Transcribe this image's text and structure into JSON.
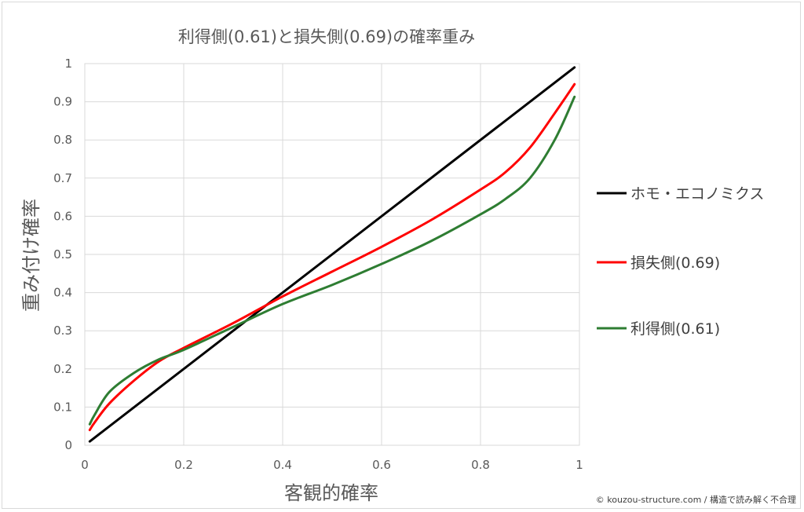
{
  "chart_data": {
    "type": "line",
    "title": "利得側(0.61)と損失側(0.69)の確率重み",
    "xlabel": "客観的確率",
    "ylabel": "重み付け確率",
    "xlim": [
      0,
      1
    ],
    "ylim": [
      0,
      1
    ],
    "xticks": [
      "0",
      "0.2",
      "0.4",
      "0.6",
      "0.8",
      "1"
    ],
    "yticks": [
      "0",
      "0.1",
      "0.2",
      "0.3",
      "0.4",
      "0.5",
      "0.6",
      "0.7",
      "0.8",
      "0.9",
      "1"
    ],
    "grid": true,
    "legend_position": "right",
    "series": [
      {
        "name": "ホモ・エコノミクス",
        "color": "#000000",
        "x": [
          0.01,
          0.99
        ],
        "y": [
          0.01,
          0.99
        ]
      },
      {
        "name": "損失側(0.69)",
        "color": "#ff0000",
        "x": [
          0.01,
          0.02,
          0.05,
          0.1,
          0.15,
          0.2,
          0.3,
          0.4,
          0.5,
          0.6,
          0.7,
          0.8,
          0.85,
          0.9,
          0.95,
          0.99
        ],
        "y": [
          0.04,
          0.06,
          0.11,
          0.17,
          0.22,
          0.255,
          0.32,
          0.39,
          0.455,
          0.52,
          0.59,
          0.67,
          0.715,
          0.78,
          0.87,
          0.946
        ]
      },
      {
        "name": "利得側(0.61)",
        "color": "#2e7d32",
        "x": [
          0.01,
          0.02,
          0.05,
          0.1,
          0.15,
          0.2,
          0.3,
          0.4,
          0.5,
          0.6,
          0.7,
          0.8,
          0.85,
          0.9,
          0.95,
          0.99
        ],
        "y": [
          0.055,
          0.08,
          0.14,
          0.19,
          0.225,
          0.25,
          0.31,
          0.37,
          0.42,
          0.475,
          0.535,
          0.605,
          0.645,
          0.7,
          0.8,
          0.913
        ]
      }
    ]
  },
  "credit": "© kouzou-structure.com / 構造で読み解く不合理"
}
